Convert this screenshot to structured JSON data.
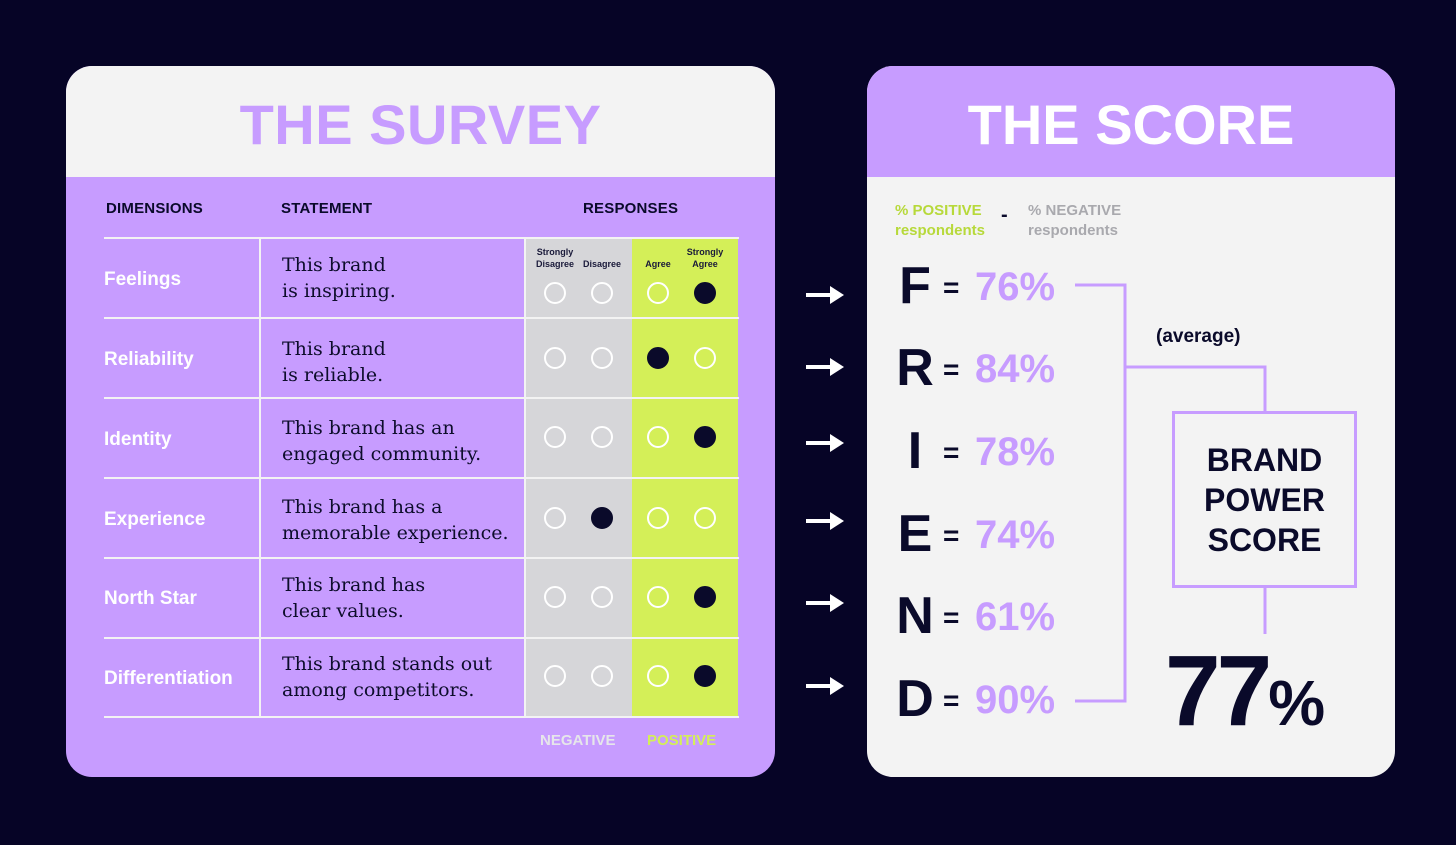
{
  "survey": {
    "title": "THE SURVEY",
    "columns": {
      "dimensions": "DIMENSIONS",
      "statement": "STATEMENT",
      "responses": "RESPONSES"
    },
    "scale": [
      "Strongly Disagree",
      "Disagree",
      "Agree",
      "Strongly Agree"
    ],
    "rows": [
      {
        "dimension": "Feelings",
        "statement": [
          "This brand",
          "is inspiring."
        ],
        "selected": 3
      },
      {
        "dimension": "Reliability",
        "statement": [
          "This brand",
          "is reliable."
        ],
        "selected": 2
      },
      {
        "dimension": "Identity",
        "statement": [
          "This brand has an",
          "engaged community."
        ],
        "selected": 3
      },
      {
        "dimension": "Experience",
        "statement": [
          "This brand has a",
          "memorable experience."
        ],
        "selected": 1
      },
      {
        "dimension": "North Star",
        "statement": [
          "This brand has",
          "clear values."
        ],
        "selected": 3
      },
      {
        "dimension": "Differentiation",
        "statement": [
          "This brand stands out",
          "among competitors."
        ],
        "selected": 3
      }
    ],
    "footer": {
      "negative": "NEGATIVE",
      "positive": "POSITIVE"
    }
  },
  "score": {
    "title": "THE SCORE",
    "formula": {
      "positive": [
        "% POSITIVE",
        "respondents"
      ],
      "minus": "-",
      "negative": [
        "% NEGATIVE",
        "respondents"
      ]
    },
    "items": [
      {
        "letter": "F",
        "eq": "=",
        "value": "76%"
      },
      {
        "letter": "R",
        "eq": "=",
        "value": "84%"
      },
      {
        "letter": "I",
        "eq": "=",
        "value": "78%"
      },
      {
        "letter": "E",
        "eq": "=",
        "value": "74%"
      },
      {
        "letter": "N",
        "eq": "=",
        "value": "61%"
      },
      {
        "letter": "D",
        "eq": "=",
        "value": "90%"
      }
    ],
    "average_label": "(average)",
    "box_lines": [
      "BRAND",
      "POWER",
      "SCORE"
    ],
    "final_number": "77",
    "final_unit": "%"
  },
  "colors": {
    "background": "#060426",
    "purple": "#c79cff",
    "lime": "#d4ef58",
    "gray": "#d6d6d9",
    "navy": "#0a0a2a"
  }
}
